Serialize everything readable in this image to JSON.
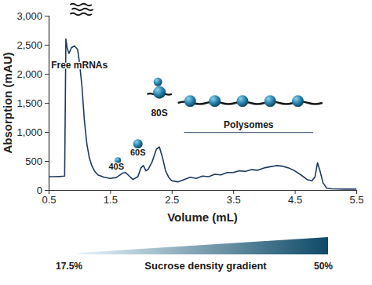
{
  "chart_data": {
    "type": "line",
    "x_label": "Volume (mL)",
    "y_label": "Absorption (mAU)",
    "annotations": [
      "Free mRNAs",
      "40S",
      "60S",
      "80S",
      "Polysomes",
      "17.5%",
      "Sucrose density gradient",
      "50%"
    ],
    "x": [
      0.5,
      0.6,
      0.7,
      0.76,
      0.78,
      0.8,
      0.83,
      0.87,
      0.92,
      0.97,
      1.0,
      1.04,
      1.08,
      1.12,
      1.16,
      1.2,
      1.25,
      1.3,
      1.4,
      1.5,
      1.6,
      1.7,
      1.75,
      1.8,
      1.87,
      1.95,
      2.0,
      2.04,
      2.08,
      2.12,
      2.18,
      2.25,
      2.3,
      2.35,
      2.4,
      2.45,
      2.5,
      2.6,
      2.7,
      2.8,
      2.9,
      3.0,
      3.1,
      3.2,
      3.3,
      3.4,
      3.5,
      3.6,
      3.7,
      3.8,
      3.9,
      4.0,
      4.1,
      4.2,
      4.3,
      4.4,
      4.5,
      4.6,
      4.7,
      4.78,
      4.83,
      4.87,
      4.91,
      4.96,
      5.02,
      5.1,
      5.3,
      5.5
    ],
    "series": [
      {
        "color": "#1f3a5f",
        "values": [
          230,
          230,
          235,
          240,
          2600,
          2450,
          2350,
          2450,
          2480,
          2420,
          2200,
          1800,
          1200,
          800,
          560,
          420,
          320,
          260,
          220,
          200,
          215,
          290,
          300,
          250,
          180,
          230,
          380,
          420,
          330,
          360,
          480,
          700,
          740,
          560,
          330,
          220,
          160,
          140,
          180,
          220,
          200,
          240,
          230,
          270,
          260,
          300,
          300,
          330,
          320,
          350,
          340,
          380,
          400,
          420,
          410,
          380,
          330,
          260,
          180,
          160,
          230,
          470,
          330,
          120,
          30,
          20,
          15,
          15
        ]
      }
    ],
    "xlim": [
      0.5,
      5.5
    ],
    "xticks": [
      0.5,
      1.5,
      2.5,
      3.5,
      4.5,
      5.5
    ],
    "ylim": [
      0,
      3000
    ],
    "yticks": [
      0,
      500,
      {
        "value": 1000,
        "label": "1,000"
      },
      {
        "value": 1500,
        "label": "1,500"
      },
      {
        "value": 2000,
        "label": "2,000"
      },
      {
        "value": 2500,
        "label": "2,500"
      },
      {
        "value": 3000,
        "label": "3,000"
      }
    ],
    "grid": false
  }
}
